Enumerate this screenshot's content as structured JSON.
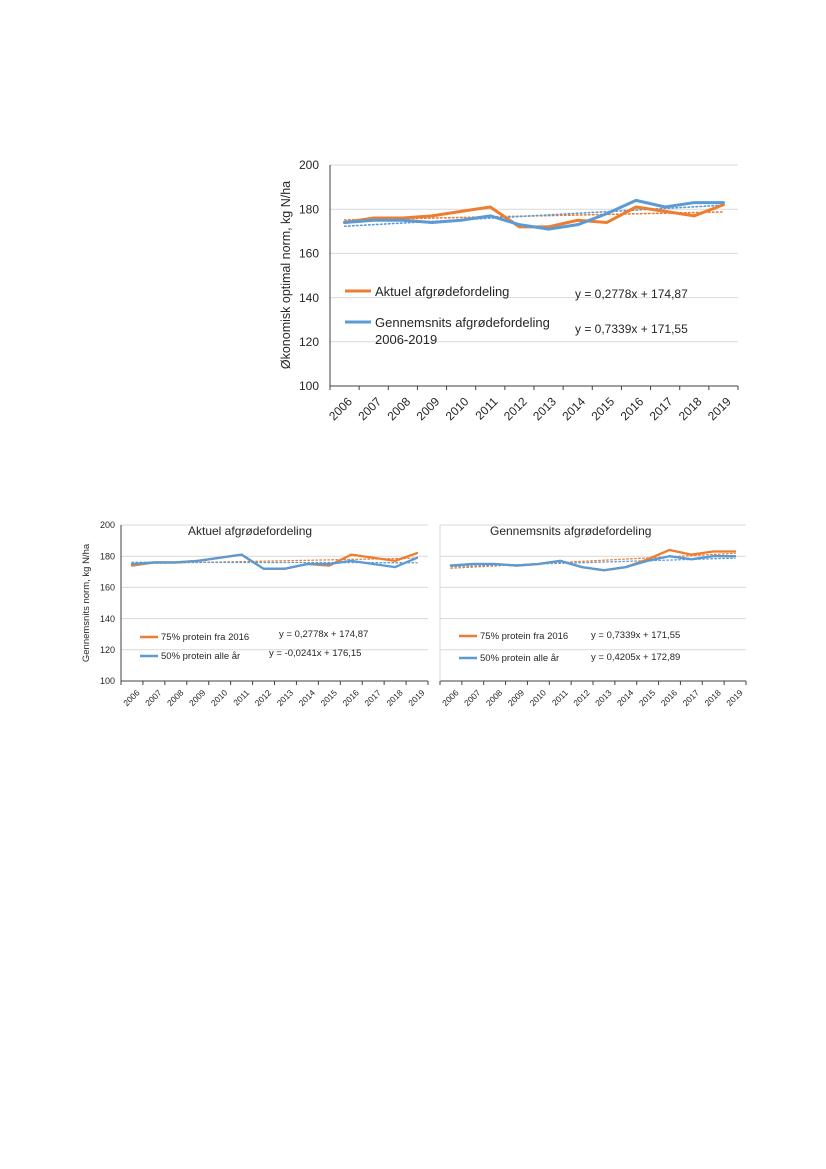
{
  "chart_data": [
    {
      "type": "line",
      "title": "",
      "xlabel": "",
      "ylabel": "Økonomisk optimal norm, kg N/ha",
      "ylim": [
        100,
        200
      ],
      "yticks": [
        100,
        120,
        140,
        160,
        180,
        200
      ],
      "categories": [
        "2006",
        "2007",
        "2008",
        "2009",
        "2010",
        "2011",
        "2012",
        "2013",
        "2014",
        "2015",
        "2016",
        "2017",
        "2018",
        "2019"
      ],
      "series": [
        {
          "name": "Aktuel afgrødefordeling",
          "color": "#ED7D31",
          "values": [
            174,
            176,
            176,
            177,
            179,
            181,
            172,
            172,
            175,
            174,
            181,
            179,
            177,
            182
          ],
          "trendline": {
            "label": "y = 0,2778x + 174,87",
            "slope": 0.2778,
            "intercept": 174.87
          }
        },
        {
          "name": "Gennemsnits afgrødefordeling",
          "name_line2": "2006-2019",
          "color": "#5B9BD5",
          "values": [
            174,
            175,
            175,
            174,
            175,
            177,
            173,
            171,
            173,
            178,
            184,
            181,
            183,
            183
          ],
          "trendline": {
            "label": "y = 0,7339x + 171,55",
            "slope": 0.7339,
            "intercept": 171.55
          }
        }
      ],
      "grid": true,
      "legend_position": "inside-bottom-left"
    },
    {
      "type": "line",
      "title": "Aktuel afgrødefordeling",
      "xlabel": "",
      "ylabel": "Gennemsnits norm, kg N/ha",
      "ylim": [
        100,
        200
      ],
      "yticks": [
        100,
        120,
        140,
        160,
        180,
        200
      ],
      "categories": [
        "2006",
        "2007",
        "2008",
        "2009",
        "2010",
        "2011",
        "2012",
        "2013",
        "2014",
        "2015",
        "2016",
        "2017",
        "2018",
        "2019"
      ],
      "series": [
        {
          "name": "75% protein fra 2016",
          "color": "#ED7D31",
          "values": [
            174,
            176,
            176,
            177,
            179,
            181,
            172,
            172,
            175,
            174,
            181,
            179,
            177,
            182
          ],
          "trendline": {
            "label": "y = 0,2778x + 174,87",
            "slope": 0.2778,
            "intercept": 174.87
          }
        },
        {
          "name": "50% protein alle år",
          "color": "#5B9BD5",
          "values": [
            175,
            176,
            176,
            177,
            179,
            181,
            172,
            172,
            175,
            175,
            177,
            175,
            173,
            179
          ],
          "trendline": {
            "label": "y = -0,0241x + 176,15",
            "slope": -0.0241,
            "intercept": 176.15
          }
        }
      ],
      "grid": true,
      "legend_position": "inside-bottom-left"
    },
    {
      "type": "line",
      "title": "Gennemsnits afgrødefordeling",
      "xlabel": "",
      "ylabel": "",
      "ylim": [
        100,
        200
      ],
      "yticks": [
        100,
        120,
        140,
        160,
        180,
        200
      ],
      "categories": [
        "2006",
        "2007",
        "2008",
        "2009",
        "2010",
        "2011",
        "2012",
        "2013",
        "2014",
        "2015",
        "2016",
        "2017",
        "2018",
        "2019"
      ],
      "series": [
        {
          "name": "75% protein fra 2016",
          "color": "#ED7D31",
          "values": [
            174,
            175,
            175,
            174,
            175,
            177,
            173,
            171,
            173,
            178,
            184,
            181,
            183,
            183
          ],
          "trendline": {
            "label": "y = 0,7339x + 171,55",
            "slope": 0.7339,
            "intercept": 171.55
          }
        },
        {
          "name": "50% protein alle år",
          "color": "#5B9BD5",
          "values": [
            174,
            175,
            175,
            174,
            175,
            177,
            173,
            171,
            173,
            177,
            180,
            178,
            180,
            180
          ],
          "trendline": {
            "label": "y = 0,4205x + 172,89",
            "slope": 0.4205,
            "intercept": 172.89
          }
        }
      ],
      "grid": true,
      "legend_position": "inside-bottom-left"
    }
  ]
}
